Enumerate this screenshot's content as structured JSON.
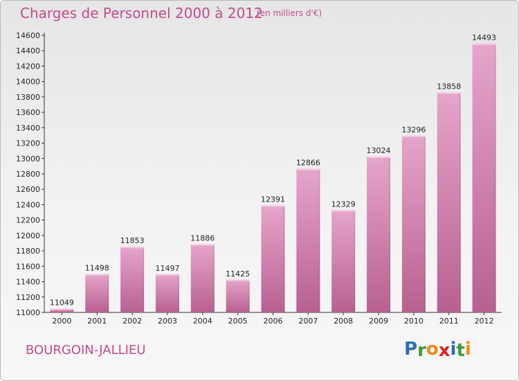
{
  "header": {
    "title": "Charges de Personnel 2000 à 2012",
    "subtitle": "(en milliers d'€)"
  },
  "footer": {
    "city": "BOURGOIN-JALLIEU",
    "logo": {
      "letters": [
        "P",
        "r",
        "o",
        "x",
        "i",
        "t",
        "i"
      ],
      "colors": [
        "#2c6fb8",
        "#3a9d3a",
        "#f08a18",
        "#e02020",
        "#2c6fb8",
        "#3a9d3a",
        "#f08a18"
      ]
    }
  },
  "colors": {
    "bar": "#c7659d",
    "bar_light": "#e6a5cb",
    "accent": "#c04b8c"
  },
  "chart_data": {
    "type": "bar",
    "title": "Charges de Personnel 2000 à 2012",
    "subtitle": "(en milliers d'€)",
    "categories": [
      "2000",
      "2001",
      "2002",
      "2003",
      "2004",
      "2005",
      "2006",
      "2007",
      "2008",
      "2009",
      "2010",
      "2011",
      "2012"
    ],
    "values": [
      11049,
      11498,
      11853,
      11497,
      11886,
      11425,
      12391,
      12866,
      12329,
      13024,
      13296,
      13858,
      14493
    ],
    "ylim": [
      11000,
      14600
    ],
    "yticks": [
      11000,
      11200,
      11400,
      11600,
      11800,
      12000,
      12200,
      12400,
      12600,
      12800,
      13000,
      13200,
      13400,
      13600,
      13800,
      14000,
      14200,
      14400,
      14600
    ],
    "grid": false,
    "data_labels": true
  }
}
